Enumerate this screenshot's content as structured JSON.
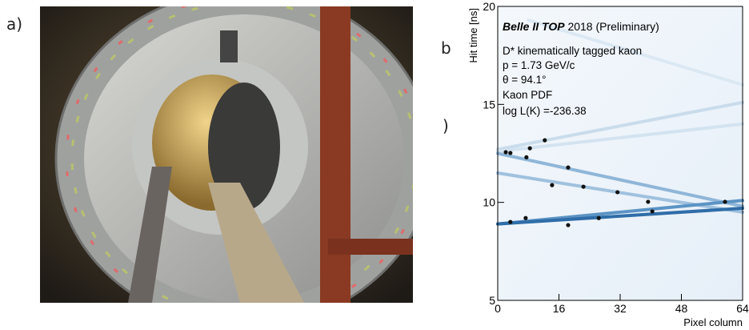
{
  "panel_labels": [
    "a)",
    "b",
    ")"
  ],
  "chart_data": {
    "type": "scatter",
    "title": "Belle II TOP",
    "subtitle": "2018 (Preliminary)",
    "annotations": [
      "D* kinematically tagged kaon",
      "p = 1.73 GeV/c",
      "θ = 94.1°",
      "Kaon PDF",
      "log L(K) =-236.38"
    ],
    "x_label": "Pixel column",
    "y_label": "Hit time [ns]",
    "xlim": [
      0,
      64
    ],
    "ylim": [
      5,
      20
    ],
    "xticks": [
      0,
      16,
      32,
      48,
      64
    ],
    "yticks": [
      5,
      10,
      15,
      20
    ],
    "bands": [
      {
        "color": "#c9dcec",
        "x": [
          0,
          64
        ],
        "y": [
          12.7,
          15.1
        ]
      },
      {
        "color": "#d3e3f0",
        "x": [
          0,
          64
        ],
        "y": [
          12.6,
          14.0
        ]
      },
      {
        "color": "#dbe8f3",
        "x": [
          8,
          64
        ],
        "y": [
          19.3,
          16.0
        ]
      },
      {
        "color": "#9fc1de",
        "x": [
          0,
          64
        ],
        "y": [
          11.5,
          9.5
        ]
      },
      {
        "color": "#8fb6d8",
        "x": [
          0,
          64
        ],
        "y": [
          12.5,
          9.8
        ]
      },
      {
        "color": "#5b93c4",
        "x": [
          0,
          64
        ],
        "y": [
          8.9,
          10.1
        ]
      },
      {
        "color": "#2f6da8",
        "x": [
          0,
          64
        ],
        "y": [
          8.9,
          9.7
        ]
      }
    ],
    "series": [
      {
        "color": "#111111",
        "x": [
          2.1,
          3.3,
          7.5,
          8.4,
          12.3,
          18.4,
          14.2,
          22.4,
          31.3,
          39.3,
          40.4,
          59.4,
          3.3,
          7.3,
          18.4,
          26.4
        ],
        "values": [
          12.56,
          12.52,
          12.3,
          12.76,
          13.17,
          11.78,
          10.88,
          10.8,
          10.52,
          10.03,
          9.54,
          10.03,
          9.0,
          9.2,
          8.84,
          9.2
        ]
      }
    ]
  }
}
